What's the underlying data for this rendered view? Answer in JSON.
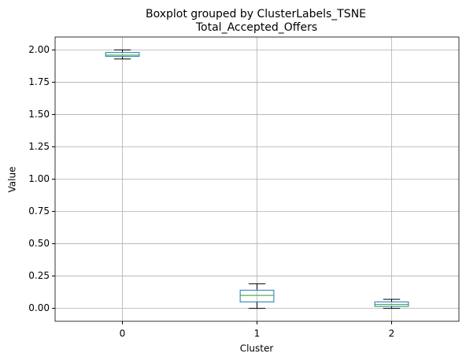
{
  "chart_data": {
    "type": "boxplot",
    "suptitle": "Boxplot grouped by ClusterLabels_TSNE",
    "title": "Total_Accepted_Offers",
    "x_label": "Cluster",
    "y_label": "Value",
    "categories": [
      "0",
      "1",
      "2"
    ],
    "boxes": [
      {
        "min": 1.93,
        "q1": 1.95,
        "median": 1.96,
        "q3": 1.98,
        "max": 2.0
      },
      {
        "min": 0.0,
        "q1": 0.05,
        "median": 0.1,
        "q3": 0.14,
        "max": 0.19
      },
      {
        "min": 0.0,
        "q1": 0.015,
        "median": 0.03,
        "q3": 0.05,
        "max": 0.07
      }
    ],
    "box_color": "#1f77b4",
    "median_color": "#2ca02c",
    "whisker_color": "#000000",
    "ylim": [
      -0.1,
      2.1
    ],
    "yticks": [
      {
        "value": 0,
        "label": "0.00"
      },
      {
        "value": 0.25,
        "label": "0.25"
      },
      {
        "value": 0.5,
        "label": "0.50"
      },
      {
        "value": 0.75,
        "label": "0.75"
      },
      {
        "value": 1,
        "label": "1.00"
      },
      {
        "value": 1.25,
        "label": "1.25"
      },
      {
        "value": 1.5,
        "label": "1.50"
      },
      {
        "value": 1.75,
        "label": "1.75"
      },
      {
        "value": 2,
        "label": "2.00"
      }
    ],
    "grid": true
  }
}
